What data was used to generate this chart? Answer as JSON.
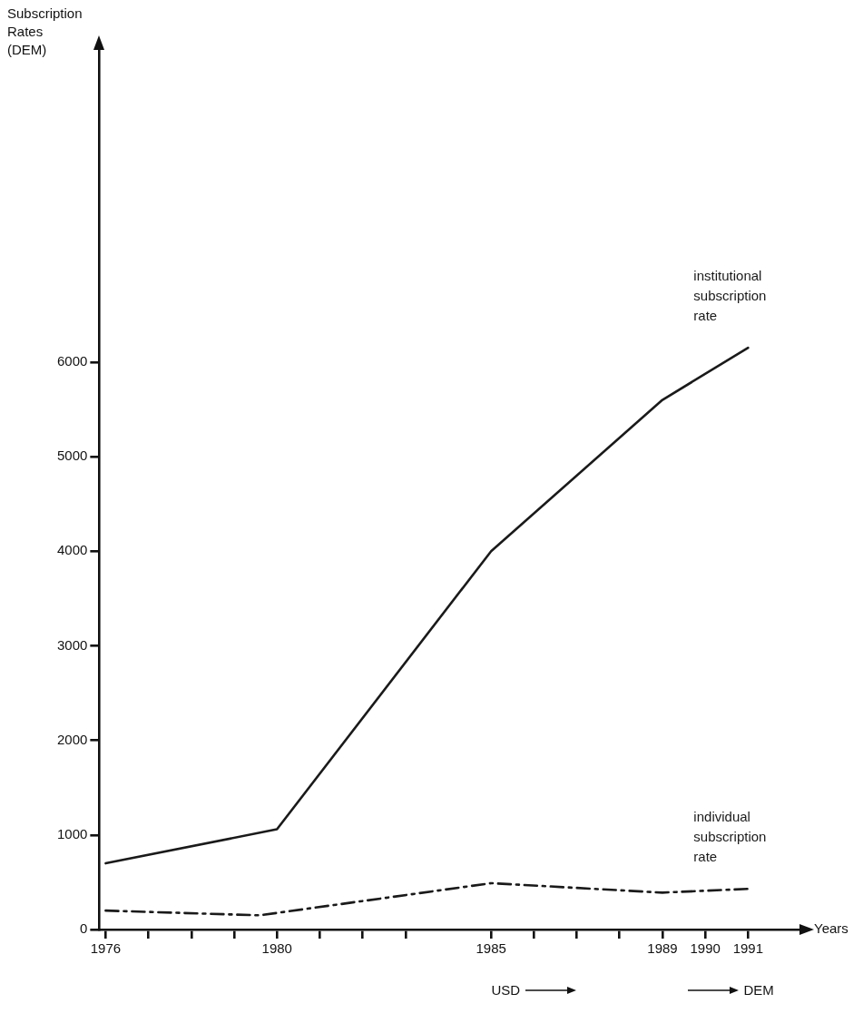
{
  "chart_data": {
    "type": "line",
    "ylabel": "Subscription Rates (DEM)",
    "xlabel": "Years",
    "xlim": [
      1975.85,
      1992.2
    ],
    "ylim": [
      0,
      9300
    ],
    "xticks": [
      1976,
      {
        "value": 1977,
        "label": null
      },
      {
        "value": 1978,
        "label": null
      },
      {
        "value": 1979,
        "label": null
      },
      1980,
      {
        "value": 1981,
        "label": null
      },
      {
        "value": 1982,
        "label": null
      },
      {
        "value": 1983,
        "label": null
      },
      1985,
      {
        "value": 1986,
        "label": null
      },
      {
        "value": 1987,
        "label": null
      },
      {
        "value": 1988,
        "label": null
      },
      1989,
      1990,
      1991
    ],
    "yticks": [
      0,
      1000,
      2000,
      3000,
      4000,
      5000,
      6000
    ],
    "grid": false,
    "legend": false,
    "marker": "none",
    "series": [
      {
        "name": "institutional subscription rate",
        "color": "#1a1a1a",
        "line_style": "solid",
        "x": [
          1976,
          1980,
          1985,
          1989,
          1991
        ],
        "values": [
          700,
          1060,
          4000,
          5600,
          6150
        ]
      },
      {
        "name": "individual subscription rate",
        "color": "#1a1a1a",
        "line_style": "dashed",
        "x": [
          1976,
          1979.6,
          1985,
          1989,
          1991
        ],
        "values": [
          200,
          150,
          490,
          390,
          430
        ]
      }
    ],
    "annotations": [
      "USD",
      "DEM"
    ]
  }
}
